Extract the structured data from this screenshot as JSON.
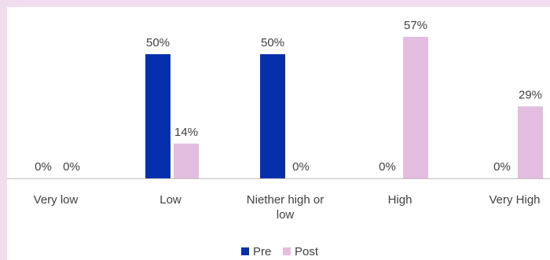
{
  "chart_data": {
    "type": "bar",
    "title": "",
    "xlabel": "",
    "ylabel": "",
    "categories": [
      "Very low",
      "Low",
      "Niether high or\nlow",
      "High",
      "Very High"
    ],
    "series": [
      {
        "name": "Pre",
        "color": "#0530ad",
        "values": [
          0,
          50,
          50,
          0,
          0
        ],
        "labels": [
          "0%",
          "50%",
          "50%",
          "0%",
          "0%"
        ]
      },
      {
        "name": "Post",
        "color": "#e2bde0",
        "values": [
          0,
          14,
          0,
          57,
          29
        ],
        "labels": [
          "0%",
          "14%",
          "0%",
          "57%",
          "29%"
        ]
      }
    ],
    "ylim": [
      0,
      60
    ],
    "unit": "%",
    "grid": false,
    "legend": "bottom-center"
  }
}
